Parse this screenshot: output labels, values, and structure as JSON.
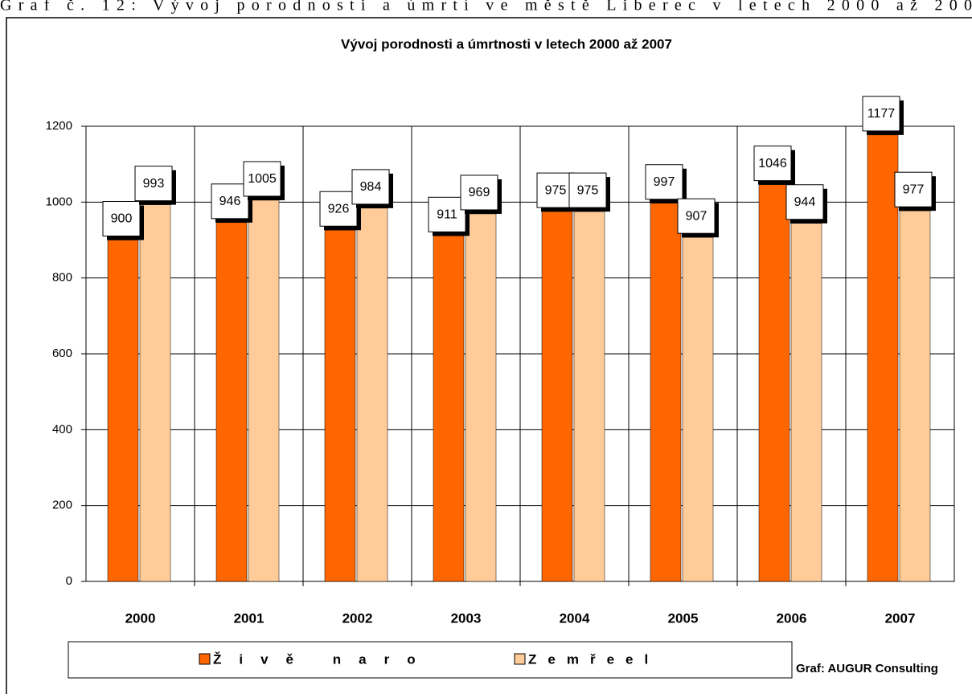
{
  "caption": "Graf č. 12: Vývoj porodnosti a úmrtí ve městě Liberec v letech 2000 až 200",
  "chart_data": {
    "type": "bar",
    "title": "Vývoj porodnosti a úmrtnosti v letech 2000 až 2007",
    "categories": [
      "2000",
      "2001",
      "2002",
      "2003",
      "2004",
      "2005",
      "2006",
      "2007"
    ],
    "series": [
      {
        "name": "Živě naro",
        "color": "#ff6600",
        "values": [
          900,
          946,
          926,
          911,
          975,
          997,
          1046,
          1177
        ]
      },
      {
        "name": "Zemřeel",
        "color": "#ffcc99",
        "values": [
          993,
          1005,
          984,
          969,
          975,
          907,
          944,
          977
        ]
      }
    ],
    "ylim": [
      0,
      1200
    ],
    "yticks": [
      0,
      200,
      400,
      600,
      800,
      1000,
      1200
    ],
    "grid": true,
    "source": "Graf: AUGUR Consulting"
  }
}
